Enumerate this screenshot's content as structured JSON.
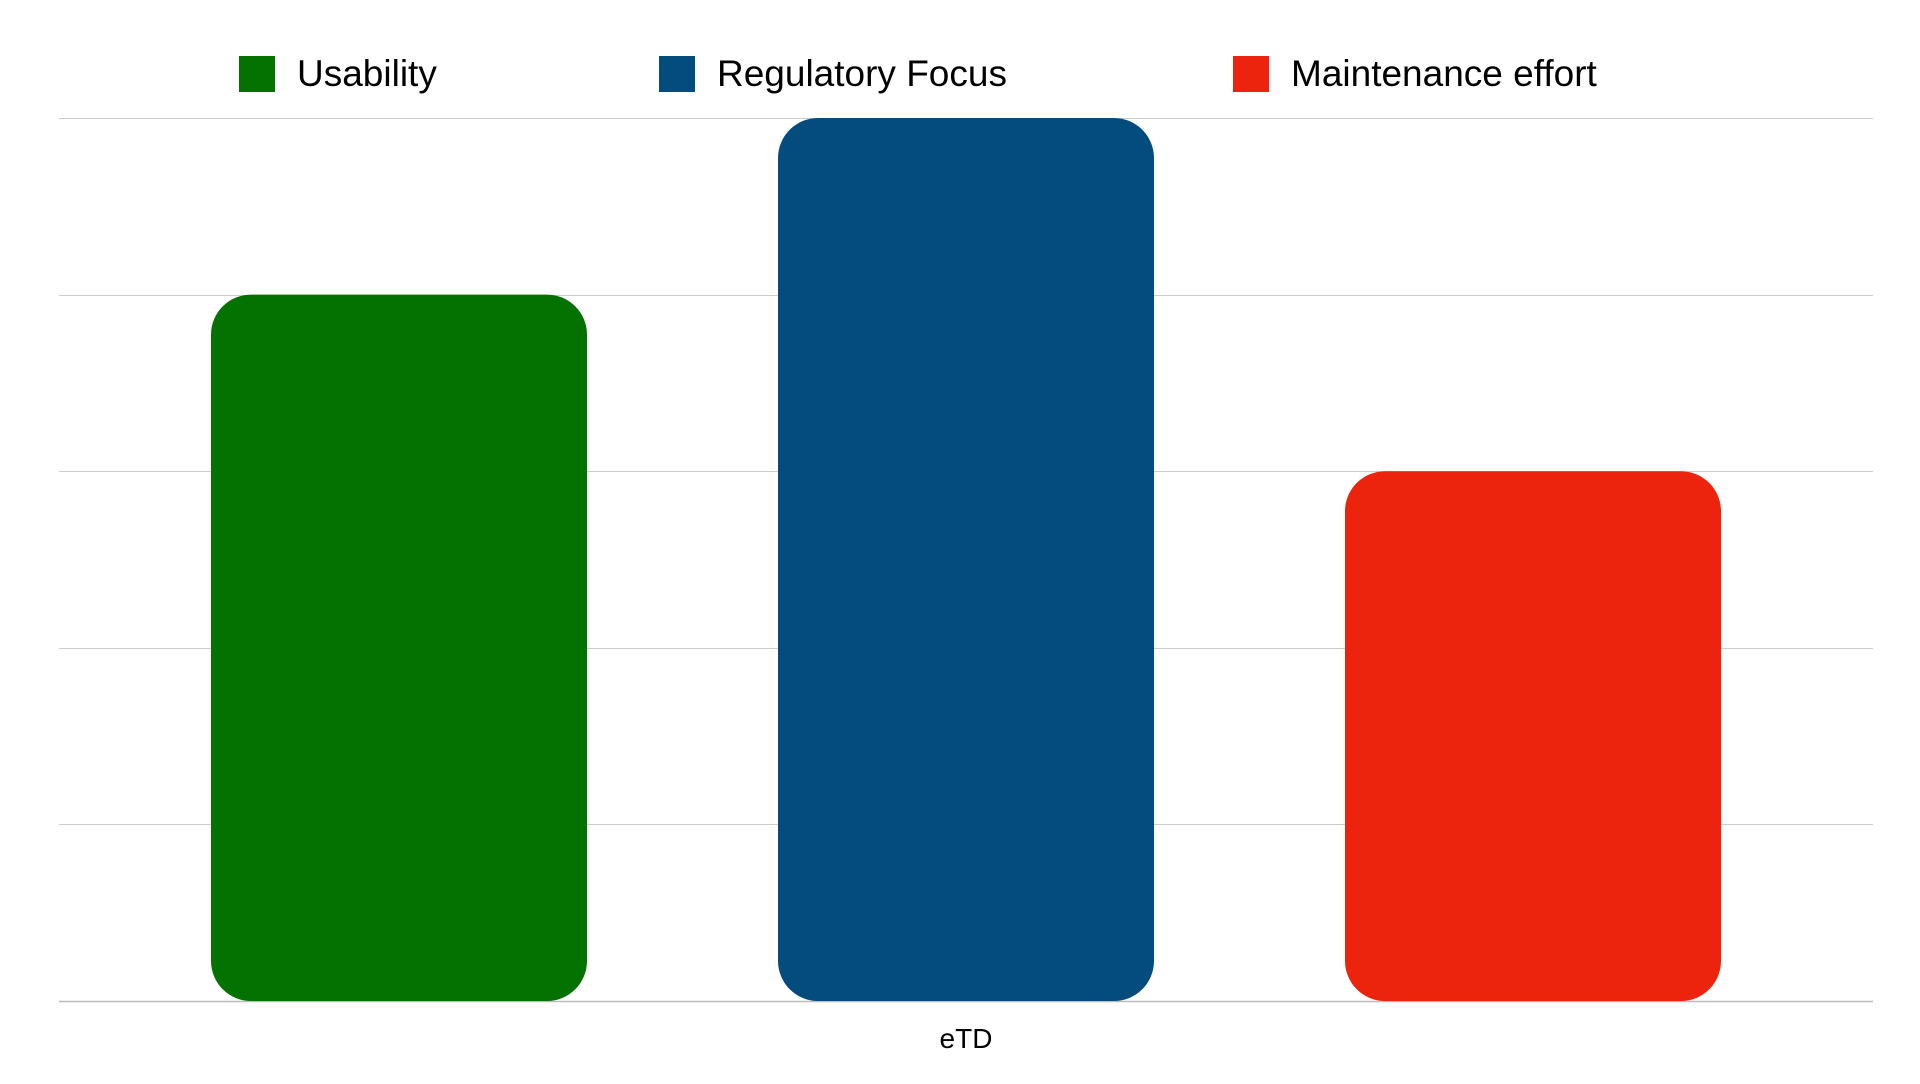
{
  "chart_data": {
    "type": "bar",
    "categories": [
      "eTD"
    ],
    "series": [
      {
        "name": "Usability",
        "values": [
          4
        ],
        "color": "#037200"
      },
      {
        "name": "Regulatory Focus",
        "values": [
          5
        ],
        "color": "#034C7D"
      },
      {
        "name": "Maintenance effort",
        "values": [
          3
        ],
        "color": "#EC230D"
      }
    ],
    "title": "",
    "xlabel": "",
    "ylabel": "",
    "ylim": [
      0,
      5
    ],
    "y_ticks": [
      0,
      1,
      2,
      3,
      4,
      5
    ],
    "grid": true,
    "legend": "top",
    "gridline_color": "#cccccc",
    "axis_color": "#bbbbbb"
  }
}
